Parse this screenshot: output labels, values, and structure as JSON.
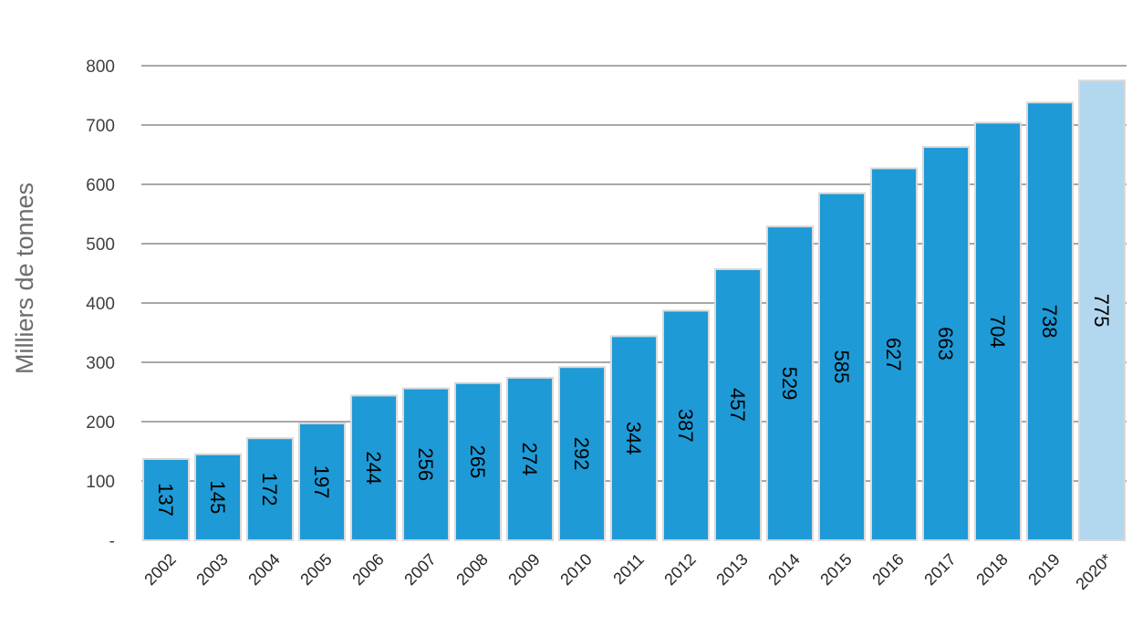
{
  "chart_data": {
    "type": "bar",
    "title": "",
    "xlabel": "",
    "ylabel": "Milliers de tonnes",
    "categories": [
      "2002",
      "2003",
      "2004",
      "2005",
      "2006",
      "2007",
      "2008",
      "2009",
      "2010",
      "2011",
      "2012",
      "2013",
      "2014",
      "2015",
      "2016",
      "2017",
      "2018",
      "2019",
      "2020*"
    ],
    "values": [
      137,
      145,
      172,
      197,
      244,
      256,
      265,
      274,
      292,
      344,
      387,
      457,
      529,
      585,
      627,
      663,
      704,
      738,
      775
    ],
    "ylim": [
      0,
      800
    ],
    "yticks": [
      0,
      100,
      200,
      300,
      400,
      500,
      600,
      700,
      800
    ],
    "ytick_labels": [
      "-",
      "100",
      "200",
      "300",
      "400",
      "500",
      "600",
      "700",
      "800"
    ],
    "grid": true,
    "colors": {
      "bar": "#1e9ad6",
      "bar_estimate": "#b3d7ee",
      "bar_border": "#d9d9d9",
      "grid": "#8c8c8c"
    }
  }
}
